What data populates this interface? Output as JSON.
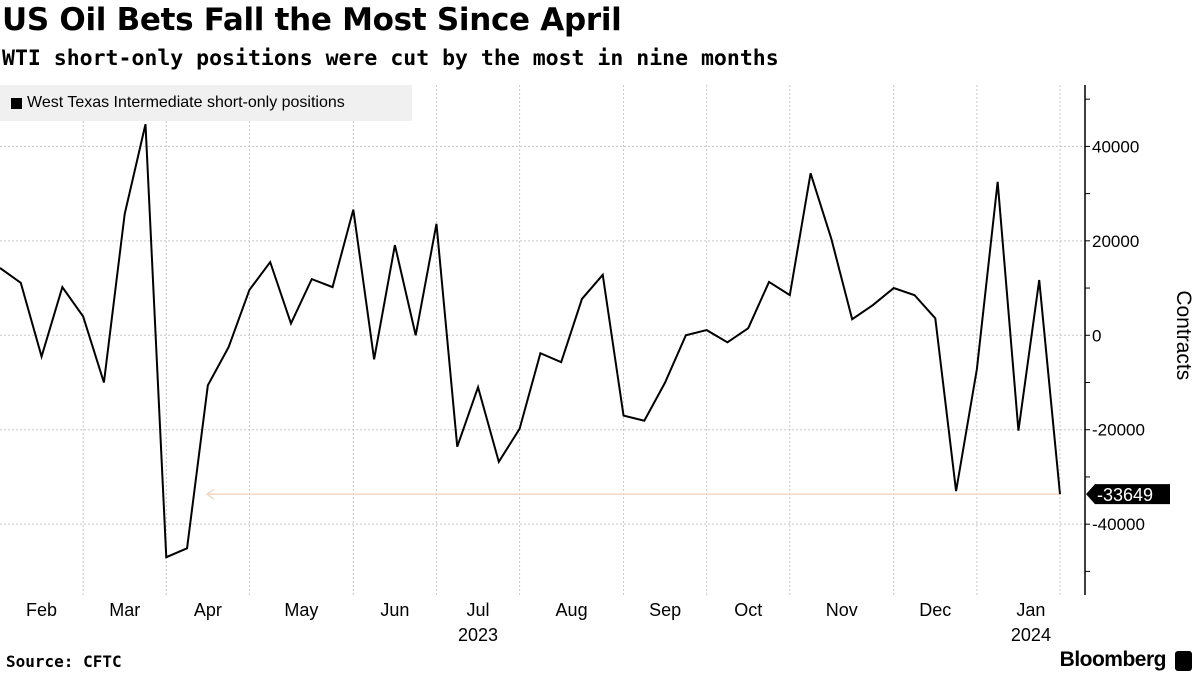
{
  "header": {
    "title": "US Oil Bets Fall the Most Since April",
    "subtitle": "WTI short-only positions were cut by the most in nine months"
  },
  "footer": {
    "source": "Source: CFTC",
    "brand": "Bloomberg"
  },
  "chart_data": {
    "type": "line",
    "title": "US Oil Bets Fall the Most Since April",
    "ylabel": "Contracts",
    "xlabel": "",
    "ylim": [
      -55000,
      53000
    ],
    "yticks": [
      -40000,
      -20000,
      0,
      20000,
      40000
    ],
    "y_axis_side": "right",
    "grid": true,
    "legend_position": "top-left",
    "x_month_labels": [
      "Feb",
      "Mar",
      "Apr",
      "May",
      "Jun",
      "Jul",
      "Aug",
      "Sep",
      "Oct",
      "Nov",
      "Dec",
      "Jan"
    ],
    "x_year_labels": [
      {
        "under": "Jul",
        "label": "2023"
      },
      {
        "under": "Jan",
        "label": "2024"
      }
    ],
    "last_value_label": "-33649",
    "series": [
      {
        "name": "West Texas Intermediate short-only positions",
        "color": "#000000",
        "values": [
          14250,
          11100,
          -4500,
          10200,
          4000,
          -10000,
          25700,
          44700,
          -47000,
          -45100,
          -10600,
          -2500,
          9600,
          15500,
          2500,
          11900,
          10200,
          26600,
          -5100,
          19100,
          0,
          23600,
          -23600,
          -11000,
          -26800,
          -19800,
          -3800,
          -5700,
          7700,
          12800,
          -17000,
          -18100,
          -10000,
          0,
          1100,
          -1500,
          1500,
          11300,
          8500,
          34300,
          20400,
          3400,
          6400,
          10000,
          8500,
          3600,
          -33000,
          -7200,
          32500,
          -20200,
          11700,
          -33649
        ]
      }
    ],
    "annotation_color": "#f2d8c2"
  }
}
